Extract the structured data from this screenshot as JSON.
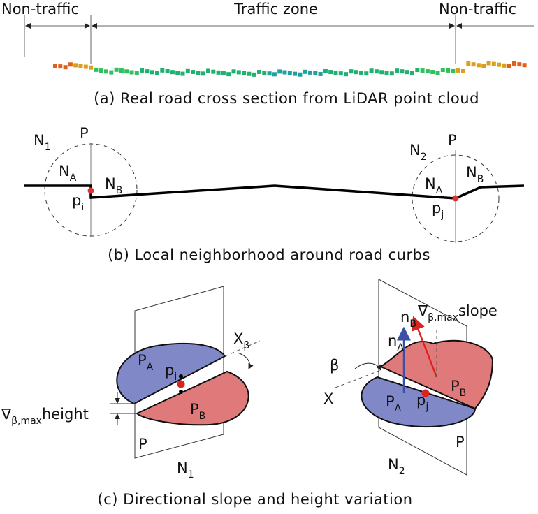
{
  "panel_a": {
    "left_zone": "Non-traffic",
    "middle_zone": "Traffic zone",
    "right_zone": "Non-traffic",
    "caption": "(a) Real road cross section from LiDAR point cloud"
  },
  "panel_b": {
    "caption": "(b) Local neighborhood around road curbs",
    "labels": [
      {
        "main": "N",
        "sub": "1"
      },
      {
        "main": "P",
        "sub": ""
      },
      {
        "main": "N",
        "sub": "A"
      },
      {
        "main": "N",
        "sub": "B"
      },
      {
        "main": "p",
        "sub": "i"
      },
      {
        "main": "N",
        "sub": "2"
      },
      {
        "main": "P",
        "sub": ""
      },
      {
        "main": "N",
        "sub": "A"
      },
      {
        "main": "N",
        "sub": "B"
      },
      {
        "main": "p",
        "sub": "j"
      }
    ]
  },
  "panel_c": {
    "caption": "(c) Directional slope and height variation",
    "labels": [
      {
        "main": "P",
        "sub": "A"
      },
      {
        "main": "p",
        "sub": "i"
      },
      {
        "main": "P",
        "sub": "B"
      },
      {
        "main": "X",
        "sub": "β"
      },
      {
        "main": "∇",
        "sub": "β,max",
        "after": "height"
      },
      {
        "main": "P",
        "sub": ""
      },
      {
        "main": "N",
        "sub": "1"
      },
      {
        "main": "β",
        "sub": ""
      },
      {
        "main": "X",
        "sub": ""
      },
      {
        "main": "n",
        "sub": "B"
      },
      {
        "main": "n",
        "sub": "A"
      },
      {
        "main": "∇",
        "sub": "β,max",
        "after": "slope"
      },
      {
        "main": "P",
        "sub": "B"
      },
      {
        "main": "P",
        "sub": "A"
      },
      {
        "main": "p",
        "sub": "j"
      },
      {
        "main": "P",
        "sub": ""
      },
      {
        "main": "N",
        "sub": "2"
      }
    ]
  }
}
